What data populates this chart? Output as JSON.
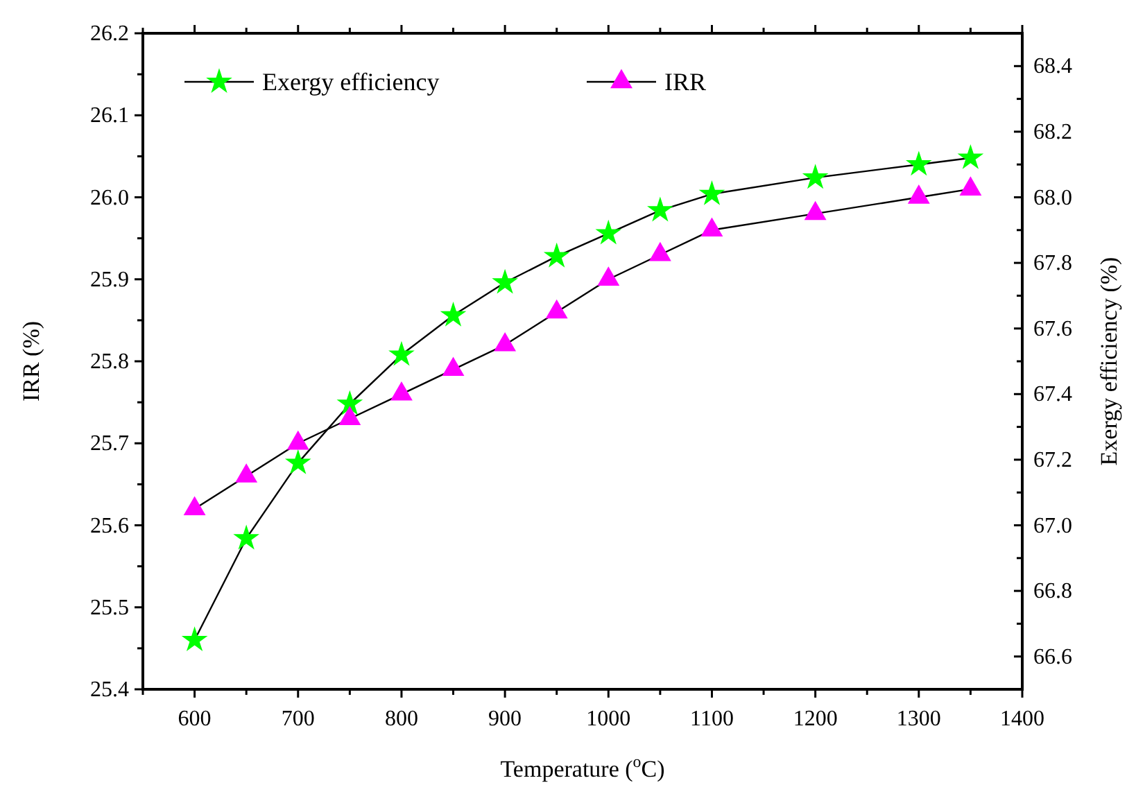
{
  "chart_data": {
    "type": "line",
    "xlabel": "Temperature ($^{o}$C)",
    "ylabel": "IRR (%)",
    "y2label": "Exergy efficiency (%)",
    "x": [
      600,
      650,
      700,
      750,
      800,
      850,
      900,
      950,
      1000,
      1050,
      1100,
      1200,
      1300,
      1350
    ],
    "xlim": [
      550,
      1400
    ],
    "xticks": [
      {
        "value": 550,
        "label": null
      },
      600,
      {
        "value": 650,
        "label": null
      },
      700,
      {
        "value": 750,
        "label": null
      },
      800,
      {
        "value": 850,
        "label": null
      },
      900,
      {
        "value": 950,
        "label": null
      },
      1000,
      {
        "value": 1050,
        "label": null
      },
      1100,
      {
        "value": 1150,
        "label": null
      },
      1200,
      {
        "value": 1250,
        "label": null
      },
      1300,
      {
        "value": 1350,
        "label": null
      },
      1400
    ],
    "ylim": [
      25.4,
      26.2
    ],
    "yticks": [
      25.4,
      {
        "value": 25.45,
        "label": null
      },
      25.5,
      {
        "value": 25.55,
        "label": null
      },
      25.6,
      {
        "value": 25.65,
        "label": null
      },
      25.7,
      {
        "value": 25.75,
        "label": null
      },
      25.8,
      {
        "value": 25.85,
        "label": null
      },
      25.9,
      {
        "value": 25.95,
        "label": null
      },
      {
        "value": 26.0,
        "label": "26.0"
      },
      {
        "value": 26.05,
        "label": null
      },
      26.1,
      {
        "value": 26.15,
        "label": null
      },
      26.2
    ],
    "y2lim": [
      66.5,
      68.5
    ],
    "y2ticks": [
      {
        "value": 66.6,
        "label": "66.6"
      },
      {
        "value": 66.7,
        "label": null
      },
      {
        "value": 66.8,
        "label": "66.8"
      },
      {
        "value": 66.9,
        "label": null
      },
      {
        "value": 67.0,
        "label": "67.0"
      },
      {
        "value": 67.1,
        "label": null
      },
      {
        "value": 67.2,
        "label": "67.2"
      },
      {
        "value": 67.3,
        "label": null
      },
      {
        "value": 67.4,
        "label": "67.4"
      },
      {
        "value": 67.5,
        "label": null
      },
      {
        "value": 67.6,
        "label": "67.6"
      },
      {
        "value": 67.7,
        "label": null
      },
      {
        "value": 67.8,
        "label": "67.8"
      },
      {
        "value": 67.9,
        "label": null
      },
      {
        "value": 68.0,
        "label": "68.0"
      },
      {
        "value": 68.1,
        "label": null
      },
      {
        "value": 68.2,
        "label": "68.2"
      },
      {
        "value": 68.3,
        "label": null
      },
      {
        "value": 68.4,
        "label": "68.4"
      }
    ],
    "legend": "top left",
    "grid": false,
    "series": [
      {
        "name": "Exergy efficiency",
        "color": "#00ff00",
        "marker": "star",
        "axis": "y2",
        "values": [
          66.65,
          66.96,
          67.19,
          67.37,
          67.52,
          67.64,
          67.74,
          67.82,
          67.89,
          67.96,
          68.01,
          68.06,
          68.1,
          68.12
        ]
      },
      {
        "name": "IRR",
        "color": "#ff00ff",
        "marker": "triangle",
        "values": [
          25.62,
          25.66,
          25.7,
          25.73,
          25.76,
          25.79,
          25.82,
          25.86,
          25.9,
          25.93,
          25.96,
          25.98,
          26.0,
          26.01
        ]
      }
    ]
  }
}
